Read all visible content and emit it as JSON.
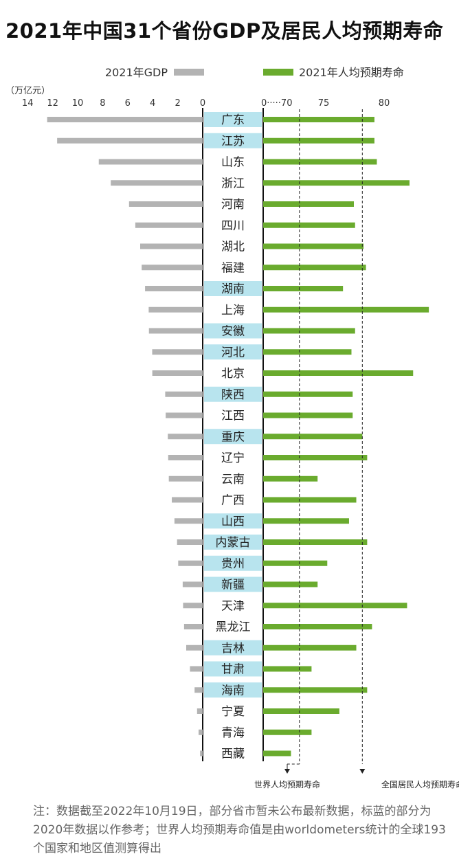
{
  "title": "2021年中国31个省份GDP及居民人均预期寿命",
  "chart_data": {
    "type": "bar",
    "categories": [
      "广东",
      "江苏",
      "山东",
      "浙江",
      "河南",
      "四川",
      "湖北",
      "福建",
      "湖南",
      "上海",
      "安徽",
      "河北",
      "北京",
      "陕西",
      "江西",
      "重庆",
      "辽宁",
      "云南",
      "广西",
      "山西",
      "内蒙古",
      "贵州",
      "新疆",
      "天津",
      "黑龙江",
      "吉林",
      "甘肃",
      "海南",
      "宁夏",
      "青海",
      "西藏"
    ],
    "highlighted": [
      true,
      true,
      false,
      false,
      false,
      false,
      false,
      false,
      true,
      false,
      true,
      true,
      false,
      true,
      false,
      true,
      false,
      false,
      false,
      true,
      true,
      true,
      true,
      false,
      false,
      true,
      true,
      true,
      false,
      false,
      false
    ],
    "series": [
      {
        "name": "2021年GDP",
        "unit": "万亿元",
        "color": "#b3b3b3",
        "values": [
          12.44,
          11.64,
          8.31,
          7.35,
          5.89,
          5.39,
          5.0,
          4.88,
          4.61,
          4.32,
          4.3,
          4.04,
          4.03,
          3.0,
          2.96,
          2.79,
          2.76,
          2.71,
          2.47,
          2.26,
          2.05,
          1.96,
          1.6,
          1.57,
          1.49,
          1.32,
          1.02,
          0.65,
          0.45,
          0.33,
          0.21
        ],
        "xlim": [
          14,
          0
        ],
        "ticks": [
          14,
          12,
          10,
          8,
          6,
          4,
          2,
          0
        ]
      },
      {
        "name": "2021年人均预期寿命",
        "color": "#6aab2e",
        "values": [
          79.2,
          79.2,
          79.4,
          82.1,
          77.5,
          77.6,
          78.3,
          78.5,
          76.6,
          83.7,
          77.6,
          77.3,
          82.4,
          77.4,
          77.4,
          78.2,
          78.6,
          74.5,
          77.7,
          77.1,
          78.6,
          75.3,
          74.5,
          81.9,
          79.0,
          77.7,
          74.0,
          78.6,
          76.3,
          74.0,
          72.3
        ],
        "ticks": [
          "0·····70",
          "75",
          "80"
        ]
      }
    ],
    "reference_lines": [
      {
        "label": "世界人均预期寿命",
        "value": 73.0
      },
      {
        "label": "全国居民人均预期寿命",
        "value": 78.2
      }
    ],
    "left_unit_label": "（万亿元）",
    "right_edge_mark": "（",
    "highlight_color": "#b8e4ee"
  },
  "footnote": [
    "注：数据截至2022年10月19日，部分省市暂未公布最新数据，标蓝的部分为",
    "2020年数据以作参考；世界人均预期寿命值是由worldometers统计的全球193",
    "个国家和地区值测算得出"
  ]
}
